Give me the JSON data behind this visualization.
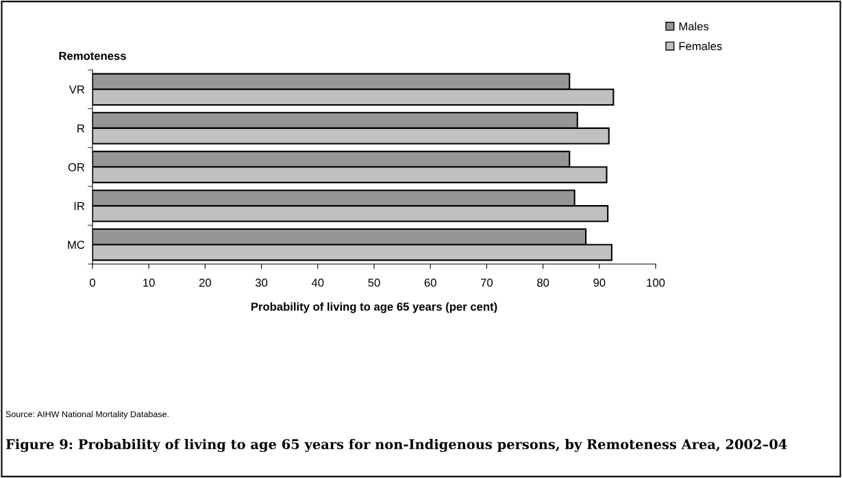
{
  "chart_data": {
    "type": "bar",
    "orientation": "horizontal",
    "title": "Figure 9: Probability of living to age 65 years for non-Indigenous persons, by Remoteness Area, 2002–04",
    "xlabel": "Probability of living to age 65 years (per cent)",
    "ylabel": "Remoteness",
    "categories": [
      "VR",
      "R",
      "OR",
      "IR",
      "MC"
    ],
    "series": [
      {
        "name": "Males",
        "color": "#969696",
        "values": [
          84.7,
          86.1,
          84.7,
          85.6,
          87.6
        ]
      },
      {
        "name": "Females",
        "color": "#c0c0c0",
        "values": [
          92.5,
          91.7,
          91.3,
          91.5,
          92.2
        ]
      }
    ],
    "xlim": [
      0,
      100
    ],
    "xticks": [
      0,
      10,
      20,
      30,
      40,
      50,
      60,
      70,
      80,
      90,
      100
    ],
    "grid": false,
    "legend": "top right",
    "annotations": [
      "Source: AIHW National Mortality Database."
    ]
  }
}
